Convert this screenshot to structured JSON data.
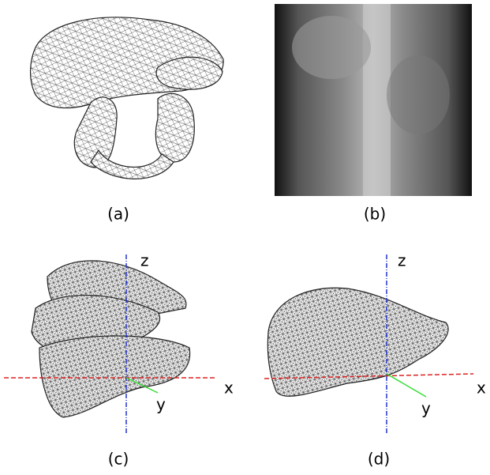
{
  "panels": [
    {
      "caption": "(a)"
    },
    {
      "caption": "(b)"
    },
    {
      "caption": "(c)",
      "axes": {
        "z": "z",
        "x": "x",
        "y": "y"
      }
    },
    {
      "caption": "(d)",
      "axes": {
        "z": "z",
        "x": "x",
        "y": "y"
      }
    }
  ]
}
